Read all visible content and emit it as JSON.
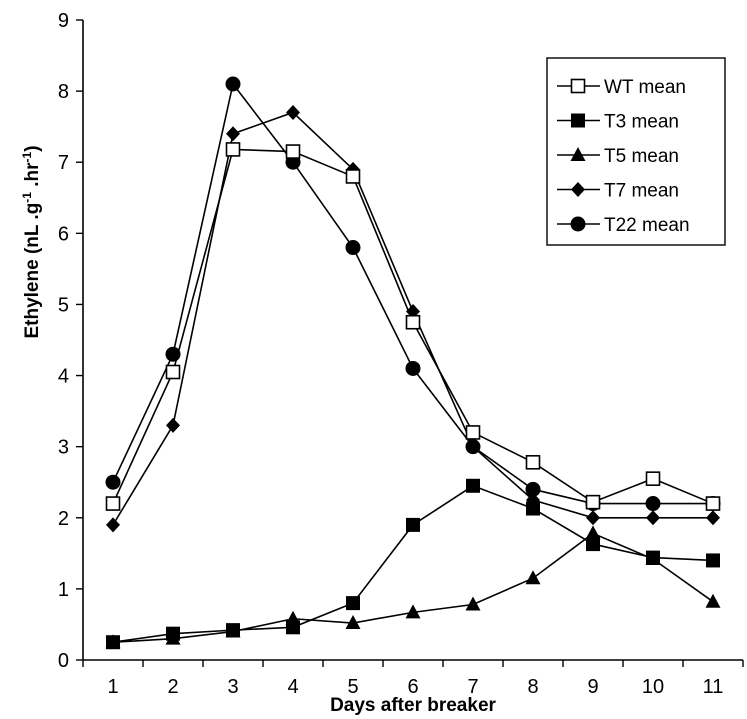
{
  "chart_data": {
    "type": "line",
    "title": "",
    "xlabel": "Days after breaker",
    "ylabel": "Ethylene (nL.g⁻¹.hr⁻¹)",
    "ylabel_parts": {
      "pre": "Ethylene (nL .g",
      "sup1": "-1",
      "mid": " .hr",
      "sup2": "-1",
      "post": ")"
    },
    "x": [
      1,
      2,
      3,
      4,
      5,
      6,
      7,
      8,
      9,
      10,
      11
    ],
    "xlim": [
      0.5,
      11.5
    ],
    "ylim": [
      0,
      9
    ],
    "yticks": [
      0,
      1,
      2,
      3,
      4,
      5,
      6,
      7,
      8,
      9
    ],
    "grid": false,
    "legend_position": "top-right",
    "series": [
      {
        "name": "WT mean",
        "marker": "square-open",
        "values": [
          2.2,
          4.05,
          7.18,
          7.15,
          6.8,
          4.75,
          3.2,
          2.78,
          2.22,
          2.55,
          2.2
        ]
      },
      {
        "name": "T3 mean",
        "marker": "square-filled",
        "values": [
          0.25,
          0.37,
          0.42,
          0.46,
          0.8,
          1.9,
          2.45,
          2.13,
          1.63,
          1.44,
          1.4
        ]
      },
      {
        "name": "T5 mean",
        "marker": "triangle-filled",
        "values": [
          0.25,
          0.3,
          0.4,
          0.58,
          0.52,
          0.67,
          0.78,
          1.15,
          1.78,
          1.42,
          0.82
        ]
      },
      {
        "name": "T7 mean",
        "marker": "diamond-filled",
        "values": [
          1.9,
          3.3,
          7.4,
          7.7,
          6.9,
          4.9,
          3.0,
          2.25,
          2.0,
          2.0,
          2.0
        ]
      },
      {
        "name": "T22 mean",
        "marker": "circle-filled",
        "values": [
          2.5,
          4.3,
          8.1,
          7.0,
          5.8,
          4.1,
          3.0,
          2.4,
          2.2,
          2.2,
          2.2
        ]
      }
    ]
  }
}
